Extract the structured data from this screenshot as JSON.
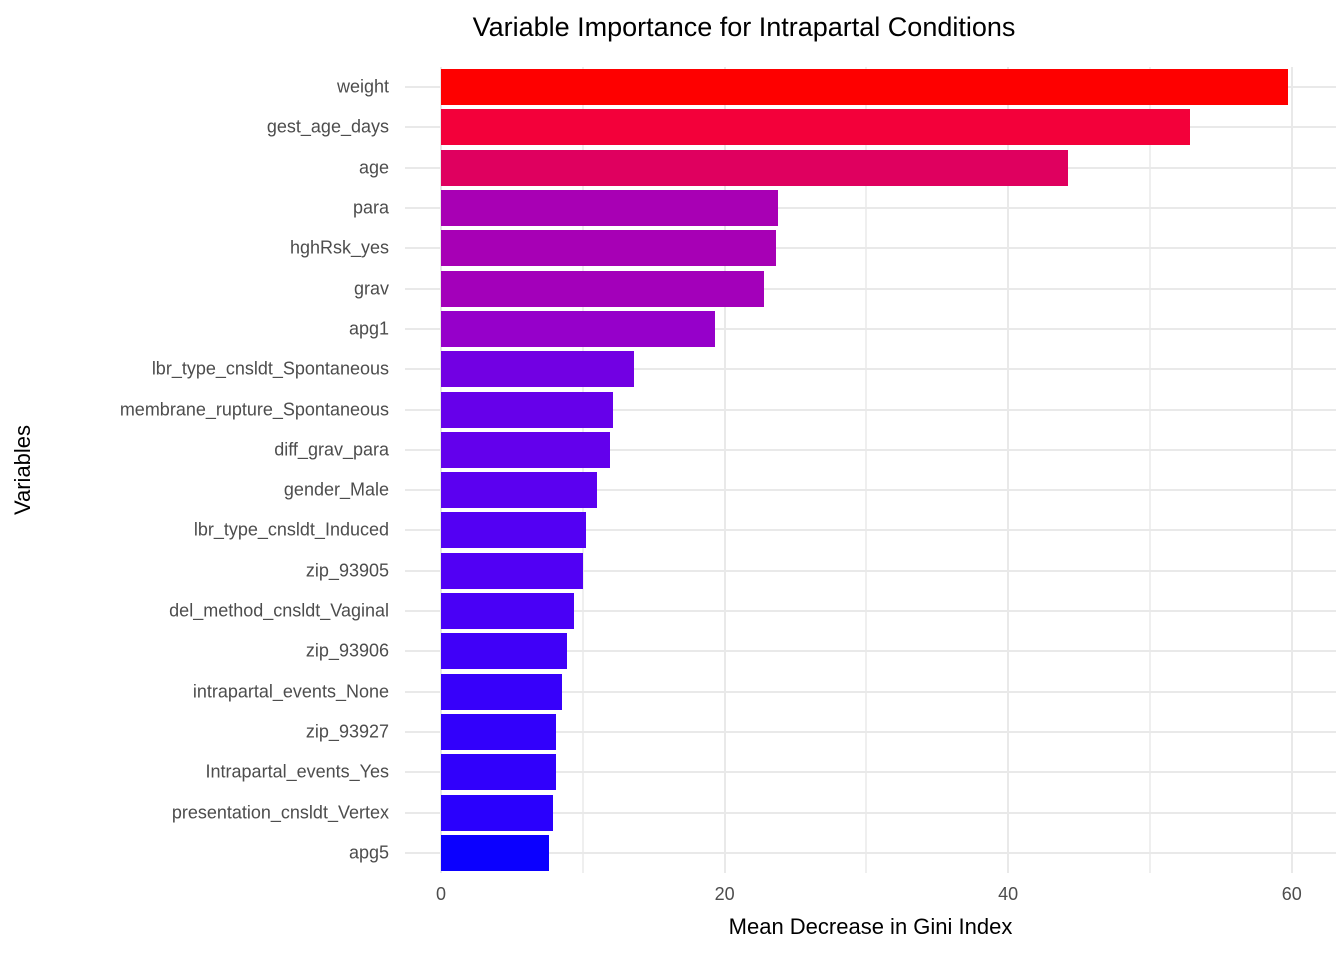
{
  "chart_data": {
    "type": "bar",
    "orientation": "horizontal",
    "title": "Variable Importance for Intrapartal Conditions",
    "xlabel": "Mean Decrease in Gini Index",
    "ylabel": "Variables",
    "categories": [
      "weight",
      "gest_age_days",
      "age",
      "para",
      "hghRsk_yes",
      "grav",
      "apg1",
      "lbr_type_cnsldt_Spontaneous",
      "membrane_rupture_Spontaneous",
      "diff_grav_para",
      "gender_Male",
      "lbr_type_cnsldt_Induced",
      "zip_93905",
      "del_method_cnsldt_Vaginal",
      "zip_93906",
      "intrapartal_events_None",
      "zip_93927",
      "Intrapartal_events_Yes",
      "presentation_cnsldt_Vertex",
      "apg5"
    ],
    "values": [
      59.7,
      52.8,
      44.2,
      23.8,
      23.6,
      22.8,
      19.3,
      13.6,
      12.1,
      11.9,
      11.0,
      10.2,
      10.0,
      9.4,
      8.9,
      8.5,
      8.1,
      8.1,
      7.9,
      7.6
    ],
    "bar_colors": [
      "#FE0000",
      "#F3003A",
      "#DF005F",
      "#A800B4",
      "#A700B5",
      "#A300BA",
      "#9600CA",
      "#7200E3",
      "#6600EA",
      "#6300EC",
      "#5B00F0",
      "#5300F3",
      "#5100F4",
      "#4900F6",
      "#4000F8",
      "#3700FA",
      "#3200FB",
      "#3100FB",
      "#2A00FD",
      "#0B00FF"
    ],
    "color_scale": {
      "low": "#0000FF",
      "high": "#FF0000",
      "mapped_to": "value"
    },
    "x_ticks": [
      "0",
      "20",
      "40",
      "60"
    ],
    "x_tick_values": [
      0,
      20,
      40,
      60
    ],
    "x_minor_tick_values": [
      10,
      30,
      50
    ],
    "xlim": [
      0,
      60
    ],
    "grid": "on",
    "legend": "none",
    "background_color": "#FFFFFF",
    "gridline_color": "#E9E9E9",
    "axis_text_color": "#4D4D4D",
    "title_color": "#000000"
  }
}
